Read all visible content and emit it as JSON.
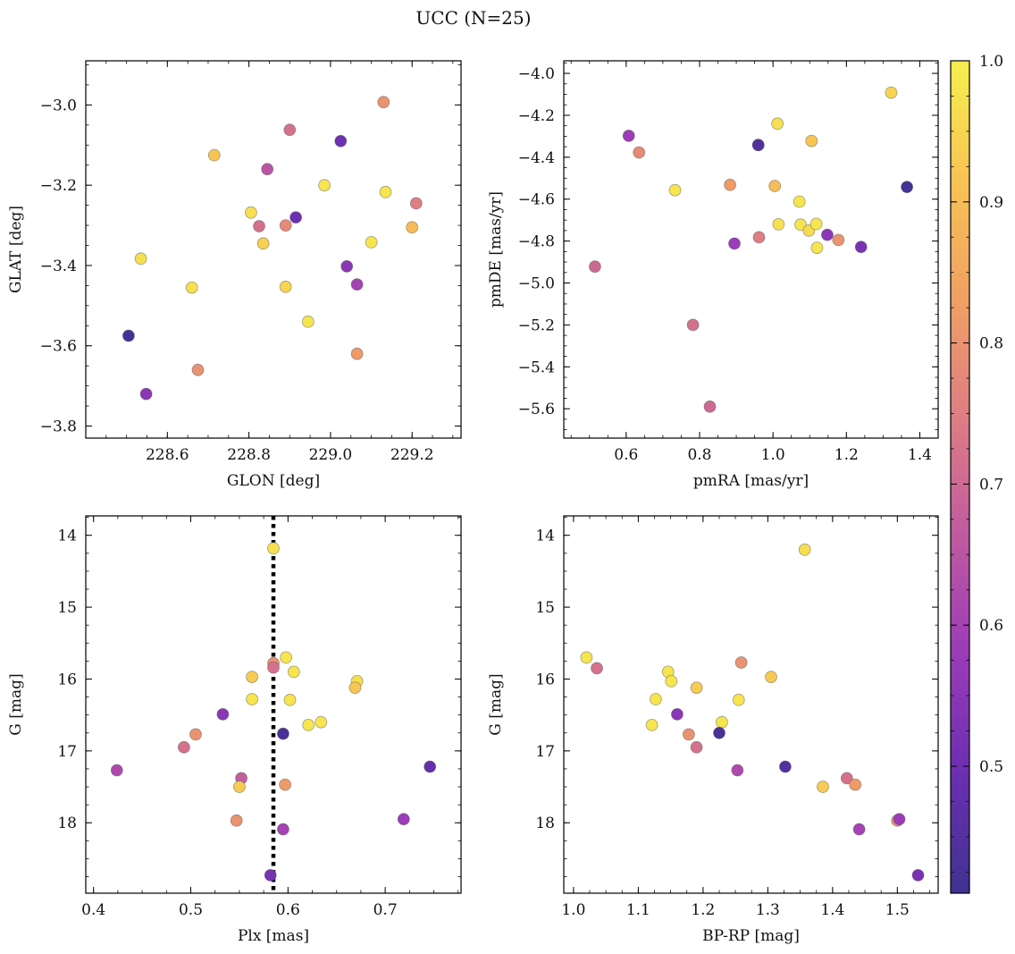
{
  "figure": {
    "title": "UCC (N=25)",
    "colorbar": {
      "ticks": [
        "1.0",
        "0.9",
        "0.8",
        "0.7",
        "0.6",
        "0.5"
      ],
      "range": [
        0.41,
        1.0
      ],
      "colormap": "plasma (truncated)",
      "colors": [
        "#3f3290",
        "#6a2fb0",
        "#9a3bb8",
        "#c05aa0",
        "#de7d84",
        "#f0a064",
        "#f8c354",
        "#f5ef4e"
      ]
    }
  },
  "chart_data": [
    {
      "type": "scatter",
      "xlabel": "GLON [deg]",
      "ylabel": "GLAT [deg]",
      "xlim": [
        228.4,
        229.32
      ],
      "ylim": [
        -3.83,
        -2.89
      ],
      "xticks": [
        228.6,
        228.8,
        229.0,
        229.2
      ],
      "xtick_labels": [
        "228.6",
        "228.8",
        "229.0",
        "229.2"
      ],
      "yticks": [
        -3.0,
        -3.2,
        -3.4,
        -3.6,
        -3.8
      ],
      "ytick_labels": [
        "−3.0",
        "−3.2",
        "−3.4",
        "−3.6",
        "−3.8"
      ],
      "points": [
        {
          "x": 228.505,
          "y": -3.575,
          "c": 0.42
        },
        {
          "x": 228.548,
          "y": -3.72,
          "c": 0.55
        },
        {
          "x": 228.535,
          "y": -3.383,
          "c": 0.97
        },
        {
          "x": 228.66,
          "y": -3.455,
          "c": 0.97
        },
        {
          "x": 228.675,
          "y": -3.66,
          "c": 0.8
        },
        {
          "x": 228.715,
          "y": -3.125,
          "c": 0.92
        },
        {
          "x": 228.805,
          "y": -3.268,
          "c": 0.97
        },
        {
          "x": 228.835,
          "y": -3.345,
          "c": 0.94
        },
        {
          "x": 228.845,
          "y": -3.16,
          "c": 0.65
        },
        {
          "x": 228.825,
          "y": -3.302,
          "c": 0.72
        },
        {
          "x": 228.89,
          "y": -3.3,
          "c": 0.78
        },
        {
          "x": 228.89,
          "y": -3.453,
          "c": 0.95
        },
        {
          "x": 228.9,
          "y": -3.062,
          "c": 0.72
        },
        {
          "x": 228.915,
          "y": -3.28,
          "c": 0.5
        },
        {
          "x": 228.945,
          "y": -3.54,
          "c": 0.98
        },
        {
          "x": 228.985,
          "y": -3.2,
          "c": 0.98
        },
        {
          "x": 229.025,
          "y": -3.09,
          "c": 0.5
        },
        {
          "x": 229.04,
          "y": -3.402,
          "c": 0.55
        },
        {
          "x": 229.065,
          "y": -3.447,
          "c": 0.6
        },
        {
          "x": 229.065,
          "y": -3.62,
          "c": 0.82
        },
        {
          "x": 229.1,
          "y": -3.342,
          "c": 0.98
        },
        {
          "x": 229.13,
          "y": -2.993,
          "c": 0.8
        },
        {
          "x": 229.135,
          "y": -3.217,
          "c": 0.98
        },
        {
          "x": 229.2,
          "y": -3.305,
          "c": 0.9
        },
        {
          "x": 229.21,
          "y": -3.245,
          "c": 0.75
        }
      ]
    },
    {
      "type": "scatter",
      "xlabel": "pmRA [mas/yr]",
      "ylabel": "pmDE [mas/yr]",
      "xlim": [
        0.43,
        1.45
      ],
      "ylim": [
        -5.74,
        -3.94
      ],
      "xticks": [
        0.6,
        0.8,
        1.0,
        1.2,
        1.4
      ],
      "xtick_labels": [
        "0.6",
        "0.8",
        "1.0",
        "1.2",
        "1.4"
      ],
      "yticks": [
        -4.0,
        -4.2,
        -4.4,
        -4.6,
        -4.8,
        -5.0,
        -5.2,
        -5.4,
        -5.6
      ],
      "ytick_labels": [
        "−4.0",
        "−4.2",
        "−4.4",
        "−4.6",
        "−4.8",
        "−5.0",
        "−5.2",
        "−5.4",
        "−5.6"
      ],
      "points": [
        {
          "x": 1.322,
          "y": -4.092,
          "c": 0.95
        },
        {
          "x": 1.012,
          "y": -4.24,
          "c": 0.97
        },
        {
          "x": 1.105,
          "y": -4.322,
          "c": 0.92
        },
        {
          "x": 0.607,
          "y": -4.298,
          "c": 0.58
        },
        {
          "x": 0.635,
          "y": -4.377,
          "c": 0.78
        },
        {
          "x": 0.96,
          "y": -4.342,
          "c": 0.45
        },
        {
          "x": 1.365,
          "y": -4.542,
          "c": 0.42
        },
        {
          "x": 0.733,
          "y": -4.557,
          "c": 0.98
        },
        {
          "x": 0.883,
          "y": -4.532,
          "c": 0.82
        },
        {
          "x": 1.005,
          "y": -4.537,
          "c": 0.9
        },
        {
          "x": 1.072,
          "y": -4.612,
          "c": 0.98
        },
        {
          "x": 1.015,
          "y": -4.72,
          "c": 0.97
        },
        {
          "x": 1.075,
          "y": -4.722,
          "c": 0.98
        },
        {
          "x": 1.098,
          "y": -4.75,
          "c": 0.96
        },
        {
          "x": 1.118,
          "y": -4.718,
          "c": 0.98
        },
        {
          "x": 1.148,
          "y": -4.77,
          "c": 0.55
        },
        {
          "x": 1.178,
          "y": -4.795,
          "c": 0.8
        },
        {
          "x": 1.12,
          "y": -4.832,
          "c": 0.98
        },
        {
          "x": 1.24,
          "y": -4.828,
          "c": 0.52
        },
        {
          "x": 0.895,
          "y": -4.812,
          "c": 0.58
        },
        {
          "x": 0.962,
          "y": -4.782,
          "c": 0.75
        },
        {
          "x": 0.515,
          "y": -4.922,
          "c": 0.7
        },
        {
          "x": 0.782,
          "y": -5.2,
          "c": 0.72
        },
        {
          "x": 0.828,
          "y": -5.59,
          "c": 0.7
        },
        {
          "x": 0.96,
          "y": -4.342,
          "c": 0.45
        }
      ]
    },
    {
      "type": "scatter",
      "xlabel": "Plx [mas]",
      "ylabel": "G [mag]",
      "xlim": [
        0.392,
        0.778
      ],
      "ylim": [
        18.98,
        13.73
      ],
      "xticks": [
        0.4,
        0.5,
        0.6,
        0.7
      ],
      "xtick_labels": [
        "0.4",
        "0.5",
        "0.6",
        "0.7"
      ],
      "yticks": [
        14,
        15,
        16,
        17,
        18
      ],
      "ytick_labels": [
        "14",
        "15",
        "16",
        "17",
        "18"
      ],
      "vline": {
        "x": 0.585,
        "style": "dotted",
        "color": "#000000"
      },
      "points": [
        {
          "x": 0.585,
          "y": 14.18,
          "c": 0.97
        },
        {
          "x": 0.598,
          "y": 15.7,
          "c": 0.98
        },
        {
          "x": 0.606,
          "y": 15.9,
          "c": 0.98
        },
        {
          "x": 0.585,
          "y": 15.78,
          "c": 0.8
        },
        {
          "x": 0.585,
          "y": 15.84,
          "c": 0.72
        },
        {
          "x": 0.563,
          "y": 15.97,
          "c": 0.93
        },
        {
          "x": 0.563,
          "y": 16.28,
          "c": 0.98
        },
        {
          "x": 0.602,
          "y": 16.29,
          "c": 0.98
        },
        {
          "x": 0.671,
          "y": 16.03,
          "c": 0.97
        },
        {
          "x": 0.669,
          "y": 16.12,
          "c": 0.92
        },
        {
          "x": 0.533,
          "y": 16.49,
          "c": 0.55
        },
        {
          "x": 0.621,
          "y": 16.64,
          "c": 0.98
        },
        {
          "x": 0.634,
          "y": 16.6,
          "c": 0.98
        },
        {
          "x": 0.505,
          "y": 16.77,
          "c": 0.8
        },
        {
          "x": 0.595,
          "y": 16.76,
          "c": 0.43
        },
        {
          "x": 0.493,
          "y": 16.95,
          "c": 0.72
        },
        {
          "x": 0.424,
          "y": 17.27,
          "c": 0.62
        },
        {
          "x": 0.746,
          "y": 17.22,
          "c": 0.48
        },
        {
          "x": 0.552,
          "y": 17.38,
          "c": 0.67
        },
        {
          "x": 0.55,
          "y": 17.5,
          "c": 0.93
        },
        {
          "x": 0.597,
          "y": 17.47,
          "c": 0.82
        },
        {
          "x": 0.547,
          "y": 17.97,
          "c": 0.8
        },
        {
          "x": 0.719,
          "y": 17.95,
          "c": 0.58
        },
        {
          "x": 0.595,
          "y": 18.09,
          "c": 0.6
        },
        {
          "x": 0.582,
          "y": 18.73,
          "c": 0.52
        }
      ]
    },
    {
      "type": "scatter",
      "xlabel": "BP-RP [mag]",
      "ylabel": "G [mag]",
      "xlim": [
        0.985,
        1.563
      ],
      "ylim": [
        18.98,
        13.73
      ],
      "xticks": [
        1.0,
        1.1,
        1.2,
        1.3,
        1.4,
        1.5
      ],
      "xtick_labels": [
        "1.0",
        "1.1",
        "1.2",
        "1.3",
        "1.4",
        "1.5"
      ],
      "yticks": [
        14,
        15,
        16,
        17,
        18
      ],
      "ytick_labels": [
        "14",
        "15",
        "16",
        "17",
        "18"
      ],
      "points": [
        {
          "x": 1.357,
          "y": 14.2,
          "c": 0.97
        },
        {
          "x": 1.02,
          "y": 15.7,
          "c": 0.98
        },
        {
          "x": 1.036,
          "y": 15.85,
          "c": 0.72
        },
        {
          "x": 1.259,
          "y": 15.77,
          "c": 0.8
        },
        {
          "x": 1.146,
          "y": 15.9,
          "c": 0.98
        },
        {
          "x": 1.151,
          "y": 16.03,
          "c": 0.98
        },
        {
          "x": 1.305,
          "y": 15.97,
          "c": 0.93
        },
        {
          "x": 1.127,
          "y": 16.28,
          "c": 0.98
        },
        {
          "x": 1.19,
          "y": 16.12,
          "c": 0.93
        },
        {
          "x": 1.255,
          "y": 16.29,
          "c": 0.98
        },
        {
          "x": 1.16,
          "y": 16.49,
          "c": 0.55
        },
        {
          "x": 1.121,
          "y": 16.64,
          "c": 0.98
        },
        {
          "x": 1.229,
          "y": 16.6,
          "c": 0.98
        },
        {
          "x": 1.178,
          "y": 16.77,
          "c": 0.8
        },
        {
          "x": 1.225,
          "y": 16.75,
          "c": 0.43
        },
        {
          "x": 1.19,
          "y": 16.95,
          "c": 0.72
        },
        {
          "x": 1.253,
          "y": 17.27,
          "c": 0.62
        },
        {
          "x": 1.327,
          "y": 17.22,
          "c": 0.45
        },
        {
          "x": 1.422,
          "y": 17.38,
          "c": 0.72
        },
        {
          "x": 1.385,
          "y": 17.5,
          "c": 0.93
        },
        {
          "x": 1.435,
          "y": 17.47,
          "c": 0.82
        },
        {
          "x": 1.5,
          "y": 17.97,
          "c": 0.8
        },
        {
          "x": 1.503,
          "y": 17.95,
          "c": 0.58
        },
        {
          "x": 1.441,
          "y": 18.09,
          "c": 0.6
        },
        {
          "x": 1.532,
          "y": 18.73,
          "c": 0.52
        }
      ]
    }
  ]
}
